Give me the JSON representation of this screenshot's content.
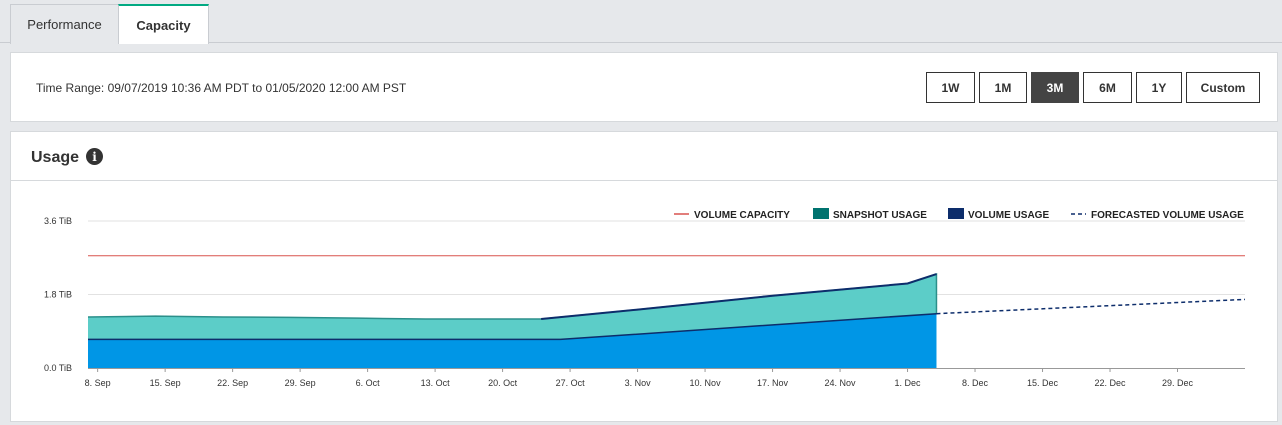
{
  "tabs": [
    {
      "label": "Performance"
    },
    {
      "label": "Capacity"
    }
  ],
  "time_range": {
    "text": "Time Range: 09/07/2019 10:36 AM PDT to 01/05/2020 12:00 AM PST",
    "buttons": [
      "1W",
      "1M",
      "3M",
      "6M",
      "1Y",
      "Custom"
    ],
    "active": "3M"
  },
  "usage": {
    "title": "Usage",
    "info_icon": "info-icon"
  },
  "colors": {
    "capacity": "#d9534f",
    "snapshot_legend": "#00736f",
    "snapshot_fill": "#5ccdc8",
    "snapshot_line": "#2b8f8a",
    "volume_legend": "#0d2d6b",
    "volume_fill": "#0096e6",
    "volume_line": "#0d2d6b",
    "forecast": "#0d2d6b"
  },
  "chart_data": {
    "type": "area",
    "x_start": "2019-09-07",
    "x_end": "2020-01-05",
    "x_ticks": [
      "8. Sep",
      "15. Sep",
      "22. Sep",
      "29. Sep",
      "6. Oct",
      "13. Oct",
      "20. Oct",
      "27. Oct",
      "3. Nov",
      "10. Nov",
      "17. Nov",
      "24. Nov",
      "1. Dec",
      "8. Dec",
      "15. Dec",
      "22. Dec",
      "29. Dec"
    ],
    "y_ticks": [
      "3.6 TiB",
      "1.8 TiB",
      "0.0 TiB"
    ],
    "ylim": [
      0,
      3.6
    ],
    "legend": [
      "VOLUME CAPACITY",
      "SNAPSHOT USAGE",
      "VOLUME USAGE",
      "FORECASTED VOLUME USAGE"
    ],
    "volume_capacity": 2.75,
    "series": [
      {
        "name": "SNAPSHOT USAGE",
        "points": [
          [
            "2019-09-07",
            1.25
          ],
          [
            "2019-09-14",
            1.27
          ],
          [
            "2019-09-21",
            1.25
          ],
          [
            "2019-09-28",
            1.24
          ],
          [
            "2019-10-05",
            1.22
          ],
          [
            "2019-10-12",
            1.2
          ],
          [
            "2019-10-19",
            1.2
          ],
          [
            "2019-10-24",
            1.2
          ],
          [
            "2019-11-03",
            1.43
          ],
          [
            "2019-11-17",
            1.77
          ],
          [
            "2019-12-01",
            2.07
          ],
          [
            "2019-12-04",
            2.3
          ]
        ]
      },
      {
        "name": "VOLUME USAGE",
        "points": [
          [
            "2019-09-07",
            0.7
          ],
          [
            "2019-10-26",
            0.7
          ],
          [
            "2019-12-04",
            1.33
          ]
        ]
      },
      {
        "name": "FORECASTED VOLUME USAGE",
        "points": [
          [
            "2019-12-04",
            1.33
          ],
          [
            "2020-01-05",
            1.68
          ]
        ]
      }
    ]
  }
}
